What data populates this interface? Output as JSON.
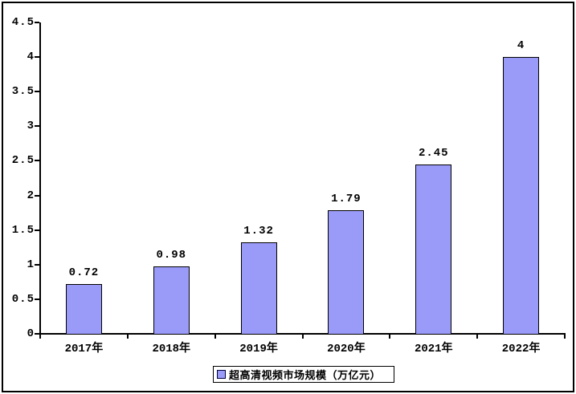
{
  "chart_data": {
    "type": "bar",
    "title": "",
    "categories": [
      "2017年",
      "2018年",
      "2019年",
      "2020年",
      "2021年",
      "2022年"
    ],
    "series": [
      {
        "name": "超高清视频市场规模（万亿元）",
        "values": [
          0.72,
          0.98,
          1.32,
          1.79,
          2.45,
          4
        ]
      }
    ],
    "value_labels": [
      "0.72",
      "0.98",
      "1.32",
      "1.79",
      "2.45",
      "4"
    ],
    "xlabel": "",
    "ylabel": "",
    "ylim": [
      0,
      4.5
    ],
    "ytick_step": 0.5,
    "ytick_labels": [
      "0",
      "0.5",
      "1",
      "1.5",
      "2",
      "2.5",
      "3",
      "3.5",
      "4",
      "4.5"
    ],
    "grid": false,
    "legend_position": "bottom",
    "colors": {
      "bar_fill": "#9a9af8",
      "bar_border": "#000000",
      "axis": "#000000",
      "text": "#000000",
      "background": "#ffffff"
    }
  },
  "legend": {
    "label": "超高清视频市场规模（万亿元）"
  }
}
